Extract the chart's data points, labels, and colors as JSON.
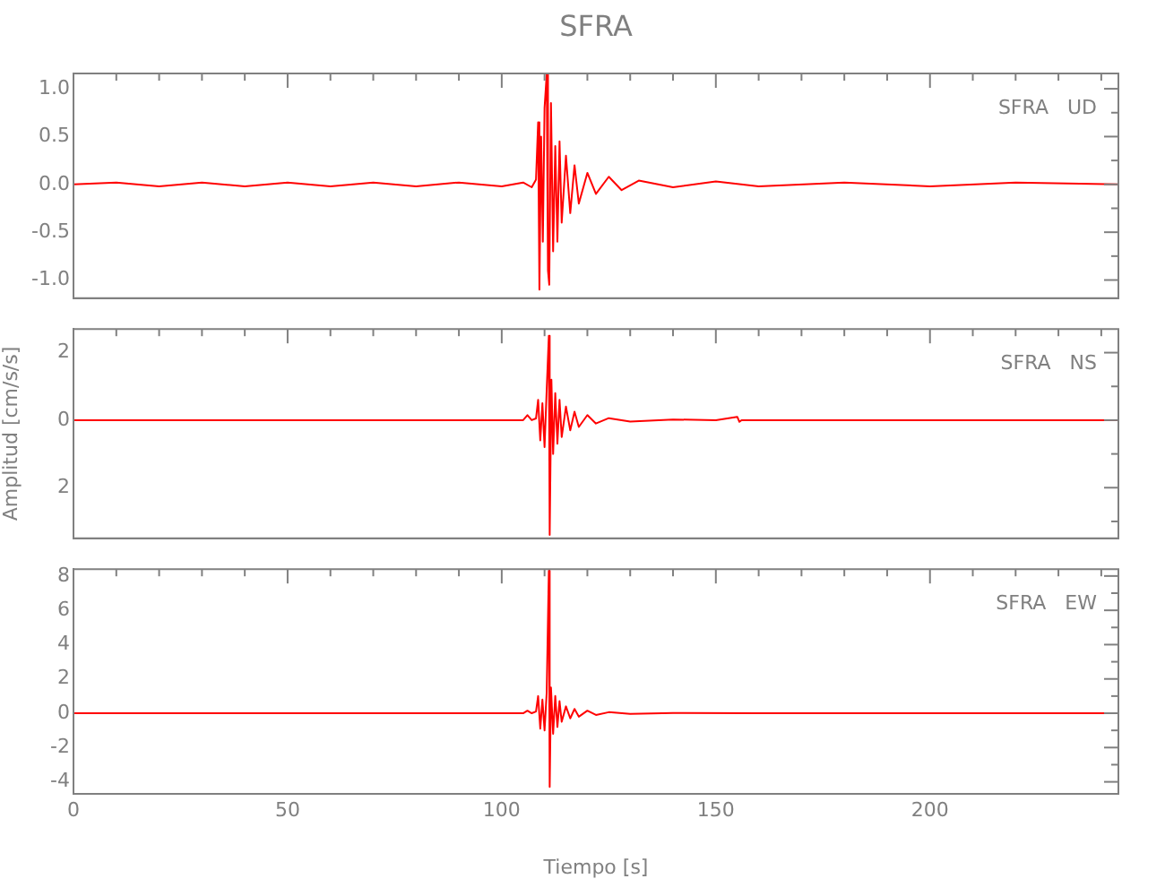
{
  "chart_data": [
    {
      "type": "line",
      "title": "SFRA",
      "annotations": [
        "SFRA   UD"
      ],
      "tick_labels": "y",
      "marker": "none",
      "legend": false,
      "xlim": [
        0,
        244
      ],
      "xticks": [
        0,
        {
          "value": 10,
          "label": null
        },
        {
          "value": 20,
          "label": null
        },
        {
          "value": 30,
          "label": null
        },
        {
          "value": 40,
          "label": null
        },
        50,
        {
          "value": 60,
          "label": null
        },
        {
          "value": 70,
          "label": null
        },
        {
          "value": 80,
          "label": null
        },
        {
          "value": 90,
          "label": null
        },
        100,
        {
          "value": 110,
          "label": null
        },
        {
          "value": 120,
          "label": null
        },
        {
          "value": 130,
          "label": null
        },
        {
          "value": 140,
          "label": null
        },
        150,
        {
          "value": 160,
          "label": null
        },
        {
          "value": 170,
          "label": null
        },
        {
          "value": 180,
          "label": null
        },
        {
          "value": 190,
          "label": null
        },
        200,
        {
          "value": 210,
          "label": null
        },
        {
          "value": 220,
          "label": null
        },
        {
          "value": 230,
          "label": null
        },
        {
          "value": 240,
          "label": null
        }
      ],
      "ylim": [
        -1.19,
        1.16
      ],
      "yticks": [
        {
          "value": -1,
          "label": "-1.0"
        },
        {
          "value": -0.75,
          "label": null
        },
        {
          "value": -0.5,
          "label": "-0.5"
        },
        {
          "value": -0.25,
          "label": null
        },
        {
          "value": 0,
          "label": "0.0"
        },
        {
          "value": 0.25,
          "label": null
        },
        {
          "value": 0.5,
          "label": "0.5"
        },
        {
          "value": 0.75,
          "label": null
        },
        {
          "value": 1,
          "label": "1.0"
        }
      ],
      "series": [
        {
          "color": "#ff0000",
          "x": [
            0,
            10,
            20,
            30,
            40,
            50,
            60,
            70,
            80,
            90,
            100,
            105,
            107,
            108,
            108.5,
            108.8,
            109.2,
            109.6,
            110,
            110.5,
            110.8,
            111.1,
            111.5,
            112,
            112.5,
            113,
            113.5,
            114,
            115,
            116,
            117,
            118,
            120,
            122,
            125,
            128,
            132,
            140,
            150,
            160,
            180,
            200,
            220,
            244
          ],
          "values": [
            0,
            0.02,
            -0.02,
            0.02,
            -0.02,
            0.02,
            -0.02,
            0.02,
            -0.02,
            0.02,
            -0.02,
            0.02,
            -0.03,
            0.05,
            0.65,
            -1.1,
            0.5,
            -0.6,
            0.8,
            1.15,
            -0.9,
            -1.05,
            0.85,
            -0.7,
            0.4,
            -0.6,
            0.45,
            -0.4,
            0.3,
            -0.3,
            0.2,
            -0.2,
            0.12,
            -0.1,
            0.08,
            -0.06,
            0.04,
            -0.03,
            0.03,
            -0.02,
            0.02,
            -0.02,
            0.02,
            0
          ]
        }
      ]
    },
    {
      "type": "line",
      "ylabel": "Amplitud [cm/s/s]",
      "annotations": [
        "SFRA   NS"
      ],
      "tick_labels": "y",
      "marker": "none",
      "legend": false,
      "xlim": [
        0,
        244
      ],
      "xticks": [
        0,
        {
          "value": 10,
          "label": null
        },
        {
          "value": 20,
          "label": null
        },
        {
          "value": 30,
          "label": null
        },
        {
          "value": 40,
          "label": null
        },
        50,
        {
          "value": 60,
          "label": null
        },
        {
          "value": 70,
          "label": null
        },
        {
          "value": 80,
          "label": null
        },
        {
          "value": 90,
          "label": null
        },
        100,
        {
          "value": 110,
          "label": null
        },
        {
          "value": 120,
          "label": null
        },
        {
          "value": 130,
          "label": null
        },
        {
          "value": 140,
          "label": null
        },
        150,
        {
          "value": 160,
          "label": null
        },
        {
          "value": 170,
          "label": null
        },
        {
          "value": 180,
          "label": null
        },
        {
          "value": 190,
          "label": null
        },
        200,
        {
          "value": 210,
          "label": null
        },
        {
          "value": 220,
          "label": null
        },
        {
          "value": 230,
          "label": null
        },
        {
          "value": 240,
          "label": null
        }
      ],
      "ylim": [
        -3.5,
        2.7
      ],
      "yticks": [
        {
          "value": -3,
          "label": null
        },
        {
          "value": -2,
          "label": "2"
        },
        {
          "value": -1,
          "label": null
        },
        0,
        {
          "value": 1,
          "label": null
        },
        2
      ],
      "series": [
        {
          "color": "#ff0000",
          "x": [
            0,
            50,
            100,
            105,
            106,
            107,
            108,
            108.5,
            109,
            109.5,
            110,
            110.5,
            111,
            111.2,
            111.6,
            112,
            112.5,
            113,
            113.5,
            114,
            115,
            116,
            117,
            118,
            120,
            122,
            125,
            130,
            140,
            150,
            155,
            155.5,
            156,
            160,
            200,
            244
          ],
          "values": [
            0,
            0,
            0,
            0,
            0.15,
            0,
            0.05,
            0.6,
            -0.6,
            0.5,
            -0.8,
            0.9,
            2.5,
            -3.4,
            1.2,
            -1.0,
            0.8,
            -0.7,
            0.6,
            -0.5,
            0.4,
            -0.3,
            0.25,
            -0.2,
            0.15,
            -0.1,
            0.06,
            -0.04,
            0.02,
            0,
            0.1,
            -0.05,
            0,
            0,
            0,
            0
          ]
        }
      ]
    },
    {
      "type": "line",
      "xlabel": "Tiempo [s]",
      "annotations": [
        "SFRA   EW"
      ],
      "marker": "none",
      "legend": false,
      "xlim": [
        0,
        244
      ],
      "xticks": [
        0,
        {
          "value": 10,
          "label": null
        },
        {
          "value": 20,
          "label": null
        },
        {
          "value": 30,
          "label": null
        },
        {
          "value": 40,
          "label": null
        },
        50,
        {
          "value": 60,
          "label": null
        },
        {
          "value": 70,
          "label": null
        },
        {
          "value": 80,
          "label": null
        },
        {
          "value": 90,
          "label": null
        },
        100,
        {
          "value": 110,
          "label": null
        },
        {
          "value": 120,
          "label": null
        },
        {
          "value": 130,
          "label": null
        },
        {
          "value": 140,
          "label": null
        },
        150,
        {
          "value": 160,
          "label": null
        },
        {
          "value": 170,
          "label": null
        },
        {
          "value": 180,
          "label": null
        },
        {
          "value": 190,
          "label": null
        },
        200,
        {
          "value": 210,
          "label": null
        },
        {
          "value": 220,
          "label": null
        },
        {
          "value": 230,
          "label": null
        },
        {
          "value": 240,
          "label": null
        }
      ],
      "ylim": [
        -4.7,
        8.4
      ],
      "yticks": [
        -4,
        {
          "value": -3,
          "label": null
        },
        -2,
        {
          "value": -1,
          "label": null
        },
        0,
        {
          "value": 1,
          "label": null
        },
        2,
        {
          "value": 3,
          "label": null
        },
        4,
        {
          "value": 5,
          "label": null
        },
        6,
        {
          "value": 7,
          "label": null
        },
        8
      ],
      "series": [
        {
          "color": "#ff0000",
          "x": [
            0,
            50,
            100,
            105,
            106,
            107,
            108,
            108.5,
            109,
            109.5,
            110,
            110.5,
            111,
            111.2,
            111.5,
            112,
            112.5,
            113,
            113.5,
            114,
            115,
            116,
            117,
            118,
            120,
            122,
            125,
            130,
            140,
            160,
            200,
            244
          ],
          "values": [
            0,
            0,
            0,
            0,
            0.15,
            0,
            0.1,
            1.0,
            -0.9,
            0.8,
            -1.0,
            1.2,
            8.3,
            -4.3,
            1.5,
            -1.2,
            1.0,
            -0.8,
            0.7,
            -0.5,
            0.4,
            -0.3,
            0.25,
            -0.2,
            0.15,
            -0.1,
            0.06,
            -0.04,
            0.02,
            0,
            0,
            0
          ]
        }
      ]
    }
  ]
}
